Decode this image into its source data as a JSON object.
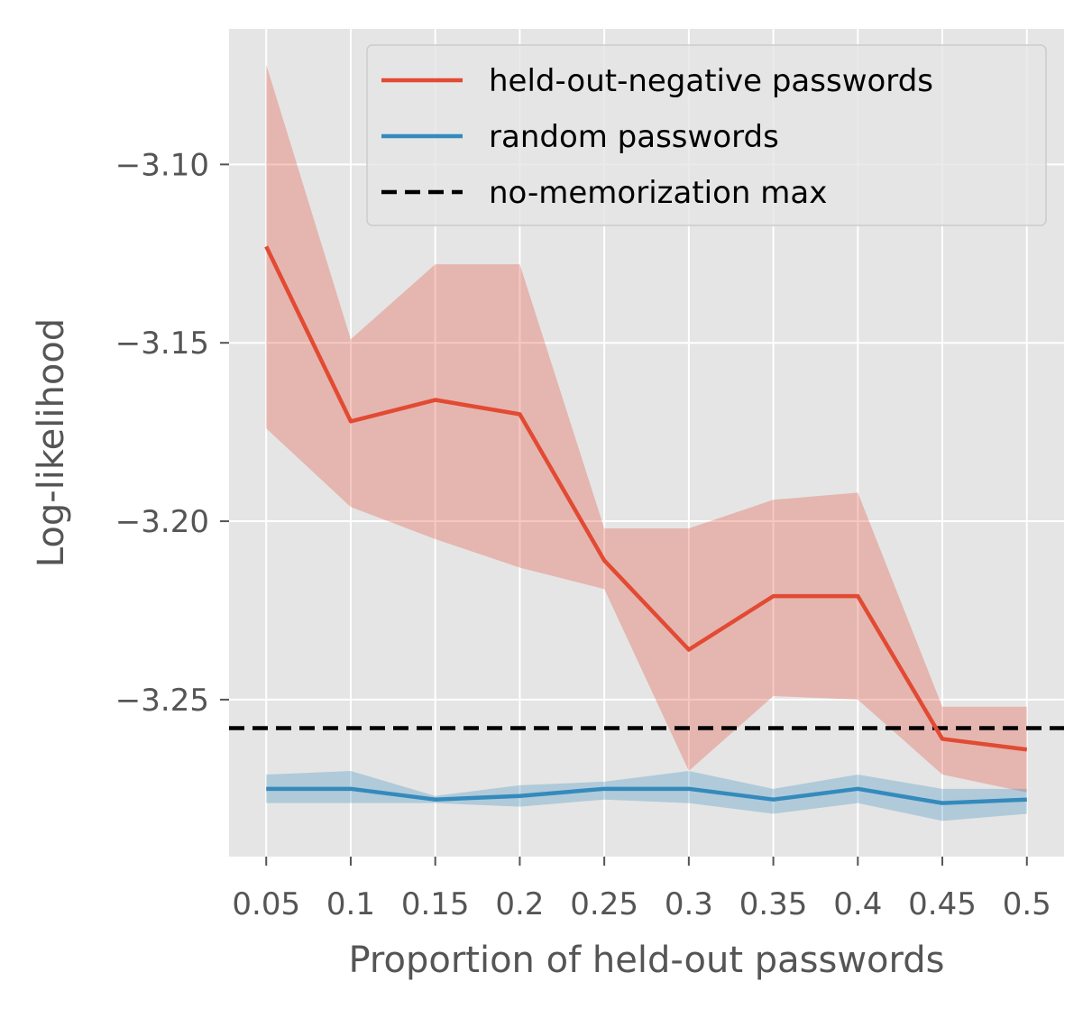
{
  "chart_data": {
    "type": "line",
    "title": "",
    "xlabel": "Proportion of held-out passwords",
    "ylabel": "Log-likelihood",
    "x": [
      0.05,
      0.1,
      0.15,
      0.2,
      0.25,
      0.3,
      0.35,
      0.4,
      0.45,
      0.5
    ],
    "x_tick_labels": [
      "0.05",
      "0.1",
      "0.15",
      "0.2",
      "0.25",
      "0.3",
      "0.35",
      "0.4",
      "0.45",
      "0.5"
    ],
    "y_ticks": [
      -3.1,
      -3.15,
      -3.2,
      -3.25
    ],
    "y_tick_labels": [
      "−3.10",
      "−3.15",
      "−3.20",
      "−3.25"
    ],
    "xlim": [
      0.028,
      0.522
    ],
    "ylim": [
      -3.294,
      -3.062
    ],
    "grid": true,
    "legend_position": "top-right",
    "series": [
      {
        "name": "held-out-negative passwords",
        "color": "#E24A33",
        "band_color": "#E24A33",
        "values": [
          -3.123,
          -3.172,
          -3.166,
          -3.17,
          -3.211,
          -3.236,
          -3.221,
          -3.221,
          -3.261,
          -3.264
        ],
        "lower": [
          -3.174,
          -3.196,
          -3.205,
          -3.213,
          -3.219,
          -3.27,
          -3.249,
          -3.25,
          -3.271,
          -3.276
        ],
        "upper": [
          -3.072,
          -3.149,
          -3.128,
          -3.128,
          -3.202,
          -3.202,
          -3.194,
          -3.192,
          -3.252,
          -3.252
        ]
      },
      {
        "name": "random passwords",
        "color": "#348ABD",
        "band_color": "#348ABD",
        "values": [
          -3.275,
          -3.275,
          -3.278,
          -3.277,
          -3.275,
          -3.275,
          -3.278,
          -3.275,
          -3.279,
          -3.278
        ],
        "lower": [
          -3.279,
          -3.279,
          -3.279,
          -3.28,
          -3.278,
          -3.279,
          -3.282,
          -3.279,
          -3.284,
          -3.282
        ],
        "upper": [
          -3.271,
          -3.27,
          -3.277,
          -3.274,
          -3.273,
          -3.27,
          -3.275,
          -3.271,
          -3.275,
          -3.275
        ]
      }
    ],
    "reference_line": {
      "name": "no-memorization max",
      "value": -3.258,
      "color": "#000000",
      "style": "dashed"
    }
  }
}
